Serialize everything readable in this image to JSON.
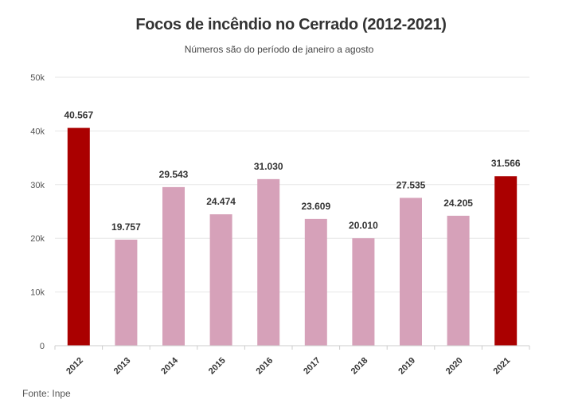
{
  "chart_data": {
    "type": "bar",
    "title": "Focos de incêndio no Cerrado (2012-2021)",
    "subtitle": "Números são do período de janeiro a agosto",
    "source": "Fonte: Inpe",
    "xlabel": "",
    "ylabel": "",
    "ylim": [
      0,
      50000
    ],
    "yticks": [
      0,
      10000,
      20000,
      30000,
      40000,
      50000
    ],
    "ytick_labels": [
      "0",
      "10k",
      "20k",
      "30k",
      "40k",
      "50k"
    ],
    "grid": true,
    "categories": [
      "2012",
      "2013",
      "2014",
      "2015",
      "2016",
      "2017",
      "2018",
      "2019",
      "2020",
      "2021"
    ],
    "values": [
      40567,
      19757,
      29543,
      24474,
      31030,
      23609,
      20010,
      27535,
      24205,
      31566
    ],
    "data_labels": [
      "40.567",
      "19.757",
      "29.543",
      "24.474",
      "31.030",
      "23.609",
      "20.010",
      "27.535",
      "24.205",
      "31.566"
    ],
    "highlighted": [
      "2012",
      "2021"
    ],
    "colors": {
      "highlight": "#aa0000",
      "default": "#d6a1b9",
      "grid": "#e6e6e6",
      "axis": "#cccccc"
    }
  }
}
